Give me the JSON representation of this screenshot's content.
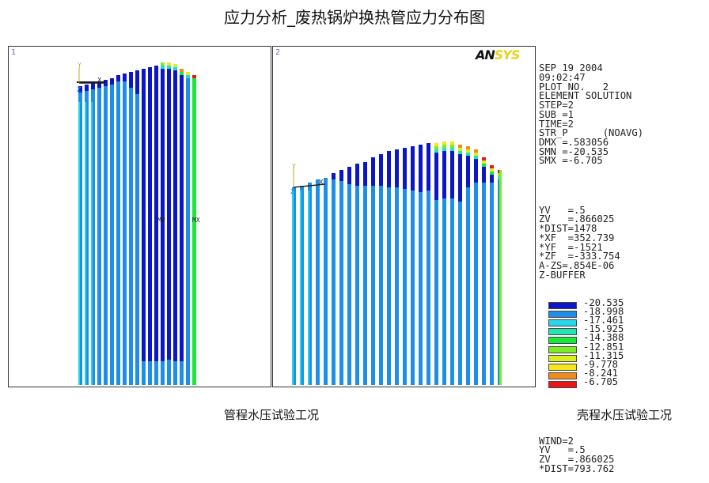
{
  "title": "应力分析_废热锅炉换热管应力分布图",
  "panel1": {
    "window_no": "1",
    "labels": {
      "mn": "MN",
      "mx": "MX"
    }
  },
  "panel2": {
    "window_no": "2",
    "logo_a": "AN",
    "logo_b": "SYS"
  },
  "legend": {
    "header": [
      "SEP 19 2004",
      "09:02:47",
      "PLOT NO.   2",
      "ELEMENT SOLUTION",
      "STEP=2",
      "SUB =1",
      "TIME=2",
      "STR_P      (NOAVG)",
      "DMX =.583056",
      "SMN =-20.535",
      "SMX =-6.705"
    ],
    "view": [
      "YV   =.5",
      "ZV   =.866025",
      "*DIST=1478",
      "*XF  =352.739",
      "*YF  =-1521",
      "*ZF  =-333.754",
      "A-ZS=.854E-06",
      "Z-BUFFER"
    ],
    "contours": [
      {
        "value": "-20.535",
        "color": "#0b16c8"
      },
      {
        "value": "-18.998",
        "color": "#1e8fe8"
      },
      {
        "value": "-17.461",
        "color": "#27d6ea"
      },
      {
        "value": "-15.925",
        "color": "#22e6b2"
      },
      {
        "value": "-14.388",
        "color": "#18e83a"
      },
      {
        "value": "-12.851",
        "color": "#7aee22"
      },
      {
        "value": "-11.315",
        "color": "#d9ef1f"
      },
      {
        "value": "-9.778",
        "color": "#f5e61c"
      },
      {
        "value": "-8.241",
        "color": "#f08d1a"
      },
      {
        "value": "-6.705",
        "color": "#e81616"
      }
    ],
    "footer": [
      "WIND=2",
      "YV   =.5",
      "ZV   =.866025",
      "*DIST=793.762"
    ]
  },
  "captions": {
    "left": "管程水压试验工况",
    "right": "壳程水压试验工况"
  }
}
